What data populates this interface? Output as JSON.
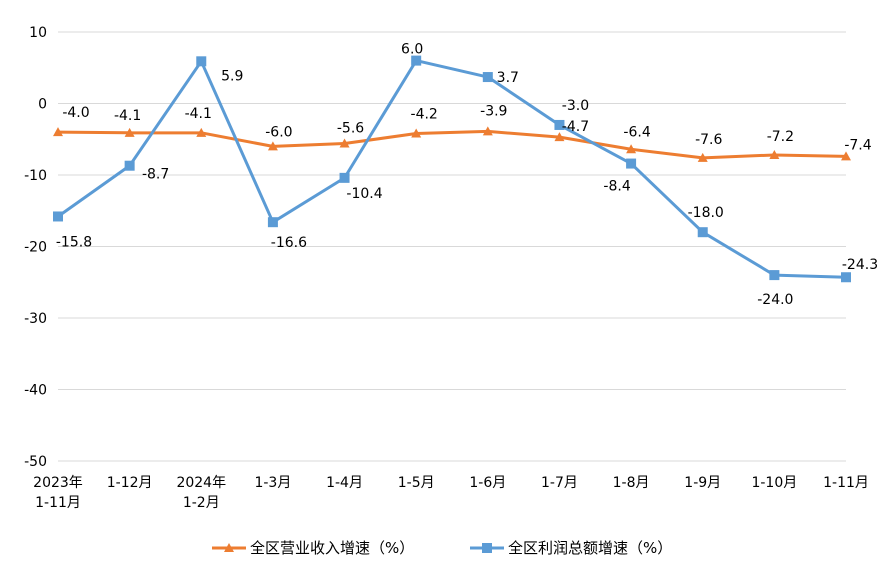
{
  "chart_data": {
    "type": "line",
    "title": "",
    "xlabel": "",
    "ylabel": "",
    "ylim": [
      -50,
      10
    ],
    "yticks": [
      10,
      0,
      -10,
      -20,
      -30,
      -40,
      -50
    ],
    "grid": true,
    "legend_position": "bottom",
    "categories": [
      [
        "2023年",
        "1-11月"
      ],
      [
        "1-12月"
      ],
      [
        "2024年",
        "1-2月"
      ],
      [
        "1-3月"
      ],
      [
        "1-4月"
      ],
      [
        "1-5月"
      ],
      [
        "1-6月"
      ],
      [
        "1-7月"
      ],
      [
        "1-8月"
      ],
      [
        "1-9月"
      ],
      [
        "1-10月"
      ],
      [
        "1-11月"
      ]
    ],
    "series": [
      {
        "name": "全区营业收入增速（%）",
        "color": "#ED7D31",
        "marker": "triangle",
        "values": [
          -4.0,
          -4.1,
          -4.1,
          -6.0,
          -5.6,
          -4.2,
          -3.9,
          -4.7,
          -6.4,
          -7.6,
          -7.2,
          -7.4
        ],
        "labels": [
          "-4.0",
          "-4.1",
          "-4.1",
          "-6.0",
          "-5.6",
          "-4.2",
          "-3.9",
          "-4.7",
          "-6.4",
          "-7.6",
          "-7.2",
          "-7.4"
        ]
      },
      {
        "name": "全区利润总额增速（%）",
        "color": "#5B9BD5",
        "marker": "square",
        "values": [
          -15.8,
          -8.7,
          5.9,
          -16.6,
          -10.4,
          6.0,
          3.7,
          -3.0,
          -8.4,
          -18.0,
          -24.0,
          -24.3
        ],
        "labels": [
          "-15.8",
          "-8.7",
          "5.9",
          "-16.6",
          "-10.4",
          "6.0",
          "3.7",
          "-3.0",
          "-8.4",
          "-18.0",
          "-24.0",
          "-24.3"
        ]
      }
    ]
  }
}
